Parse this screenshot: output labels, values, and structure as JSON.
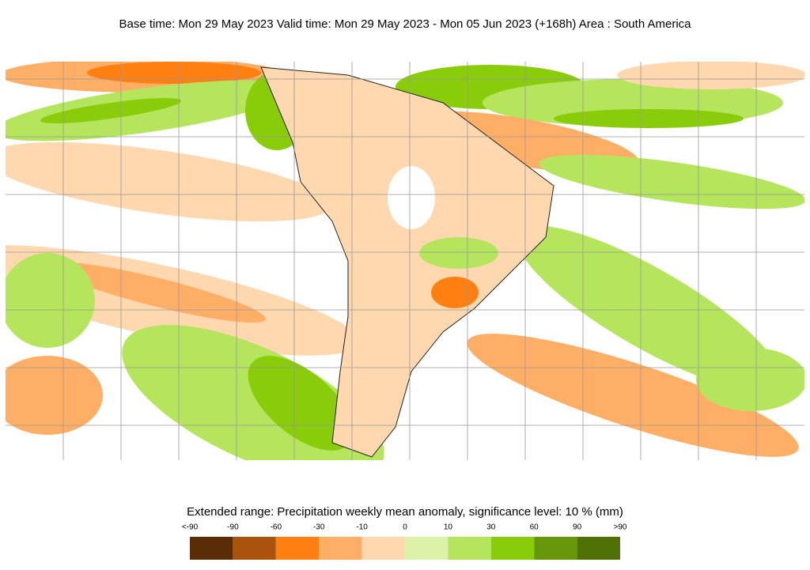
{
  "header": {
    "title": "Base time: Mon 29 May 2023 Valid time: Mon 29 May 2023 - Mon 05 Jun 2023 (+168h) Area : South America"
  },
  "legend": {
    "title": "Extended range: Precipitation weekly mean anomaly, significance level: 10 % (mm)",
    "labels": [
      "<-90",
      "-90",
      "-60",
      "-30",
      "-10",
      "0",
      "10",
      "30",
      "60",
      "90",
      ">90"
    ],
    "colors": [
      "#5a2c08",
      "#a9530d",
      "#ff7f10",
      "#ffae66",
      "#ffd8b0",
      "#dcf2a8",
      "#b5e55c",
      "#89cc0a",
      "#66960a",
      "#4f7005"
    ]
  }
}
